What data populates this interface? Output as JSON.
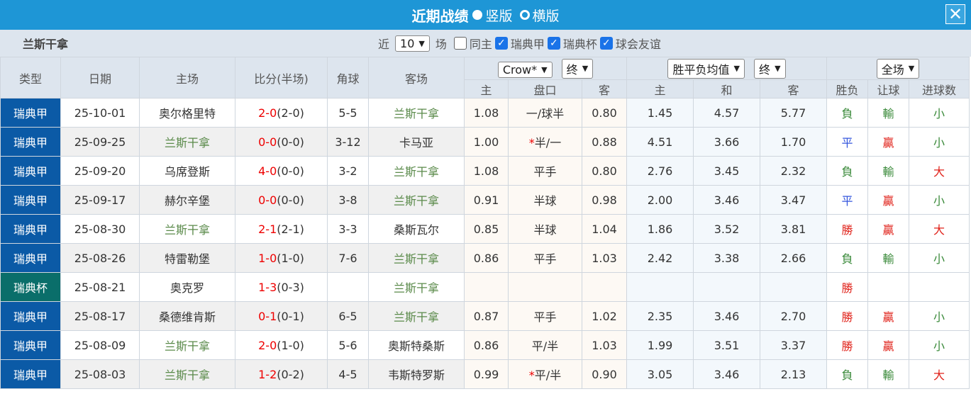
{
  "title": {
    "text": "近期战绩",
    "option_vertical": "竖版",
    "option_horizontal": "横版",
    "selected": "竖版"
  },
  "filter": {
    "team": "兰斯干拿",
    "near": "近",
    "count": "10",
    "games": "场",
    "same_home": "同主",
    "leagues": [
      "瑞典甲",
      "瑞典杯",
      "球会友谊"
    ]
  },
  "header": {
    "type": "类型",
    "date": "日期",
    "home": "主场",
    "score": "比分(半场)",
    "corner": "角球",
    "away": "客场",
    "company": "Crow*",
    "final1": "终",
    "avg": "胜平负均值",
    "final2": "终",
    "period": "全场",
    "sub": [
      "主",
      "盘口",
      "客",
      "主",
      "和",
      "客",
      "胜负",
      "让球",
      "进球数"
    ]
  },
  "colors": {
    "title_bar": "#1e96d6",
    "league": "#0b5aa6",
    "cup": "#0a6e6a",
    "focus_team": "#5a8a4a",
    "score": "#e00000"
  },
  "rows": [
    {
      "type": "瑞典甲",
      "date": "25-10-01",
      "home": "奥尔格里特",
      "ft": "2-0",
      "ht": "(2-0)",
      "corner": "5-5",
      "away": "兰斯干拿",
      "ah_h": "1.08",
      "ah_star": "",
      "ah": "一/球半",
      "ah_a": "0.80",
      "w": "1.45",
      "d": "4.57",
      "l": "5.77",
      "res": "負",
      "hc": "輸",
      "ou": "小",
      "focus": "away"
    },
    {
      "type": "瑞典甲",
      "date": "25-09-25",
      "home": "兰斯干拿",
      "ft": "0-0",
      "ht": "(0-0)",
      "corner": "3-12",
      "away": "卡马亚",
      "ah_h": "1.00",
      "ah_star": "*",
      "ah": "半/一",
      "ah_a": "0.88",
      "w": "4.51",
      "d": "3.66",
      "l": "1.70",
      "res": "平",
      "hc": "贏",
      "ou": "小",
      "focus": "home"
    },
    {
      "type": "瑞典甲",
      "date": "25-09-20",
      "home": "乌席登斯",
      "ft": "4-0",
      "ht": "(0-0)",
      "corner": "3-2",
      "away": "兰斯干拿",
      "ah_h": "1.08",
      "ah_star": "",
      "ah": "平手",
      "ah_a": "0.80",
      "w": "2.76",
      "d": "3.45",
      "l": "2.32",
      "res": "負",
      "hc": "輸",
      "ou": "大",
      "focus": "away"
    },
    {
      "type": "瑞典甲",
      "date": "25-09-17",
      "home": "赫尔辛堡",
      "ft": "0-0",
      "ht": "(0-0)",
      "corner": "3-8",
      "away": "兰斯干拿",
      "ah_h": "0.91",
      "ah_star": "",
      "ah": "半球",
      "ah_a": "0.98",
      "w": "2.00",
      "d": "3.46",
      "l": "3.47",
      "res": "平",
      "hc": "贏",
      "ou": "小",
      "focus": "away"
    },
    {
      "type": "瑞典甲",
      "date": "25-08-30",
      "home": "兰斯干拿",
      "ft": "2-1",
      "ht": "(2-1)",
      "corner": "3-3",
      "away": "桑斯瓦尔",
      "ah_h": "0.85",
      "ah_star": "",
      "ah": "半球",
      "ah_a": "1.04",
      "w": "1.86",
      "d": "3.52",
      "l": "3.81",
      "res": "勝",
      "hc": "贏",
      "ou": "大",
      "focus": "home"
    },
    {
      "type": "瑞典甲",
      "date": "25-08-26",
      "home": "特雷勒堡",
      "ft": "1-0",
      "ht": "(1-0)",
      "corner": "7-6",
      "away": "兰斯干拿",
      "ah_h": "0.86",
      "ah_star": "",
      "ah": "平手",
      "ah_a": "1.03",
      "w": "2.42",
      "d": "3.38",
      "l": "2.66",
      "res": "負",
      "hc": "輸",
      "ou": "小",
      "focus": "away"
    },
    {
      "type": "瑞典杯",
      "date": "25-08-21",
      "home": "奥克罗",
      "ft": "1-3",
      "ht": "(0-3)",
      "corner": "",
      "away": "兰斯干拿",
      "ah_h": "",
      "ah_star": "",
      "ah": "",
      "ah_a": "",
      "w": "",
      "d": "",
      "l": "",
      "res": "勝",
      "hc": "",
      "ou": "",
      "focus": "away"
    },
    {
      "type": "瑞典甲",
      "date": "25-08-17",
      "home": "桑德维肯斯",
      "ft": "0-1",
      "ht": "(0-1)",
      "corner": "6-5",
      "away": "兰斯干拿",
      "ah_h": "0.87",
      "ah_star": "",
      "ah": "平手",
      "ah_a": "1.02",
      "w": "2.35",
      "d": "3.46",
      "l": "2.70",
      "res": "勝",
      "hc": "贏",
      "ou": "小",
      "focus": "away"
    },
    {
      "type": "瑞典甲",
      "date": "25-08-09",
      "home": "兰斯干拿",
      "ft": "2-0",
      "ht": "(1-0)",
      "corner": "5-6",
      "away": "奥斯特桑斯",
      "ah_h": "0.86",
      "ah_star": "",
      "ah": "平/半",
      "ah_a": "1.03",
      "w": "1.99",
      "d": "3.51",
      "l": "3.37",
      "res": "勝",
      "hc": "贏",
      "ou": "小",
      "focus": "home"
    },
    {
      "type": "瑞典甲",
      "date": "25-08-03",
      "home": "兰斯干拿",
      "ft": "1-2",
      "ht": "(0-2)",
      "corner": "4-5",
      "away": "韦斯特罗斯",
      "ah_h": "0.99",
      "ah_star": "*",
      "ah": "平/半",
      "ah_a": "0.90",
      "w": "3.05",
      "d": "3.46",
      "l": "2.13",
      "res": "負",
      "hc": "輸",
      "ou": "大",
      "focus": "home"
    }
  ]
}
